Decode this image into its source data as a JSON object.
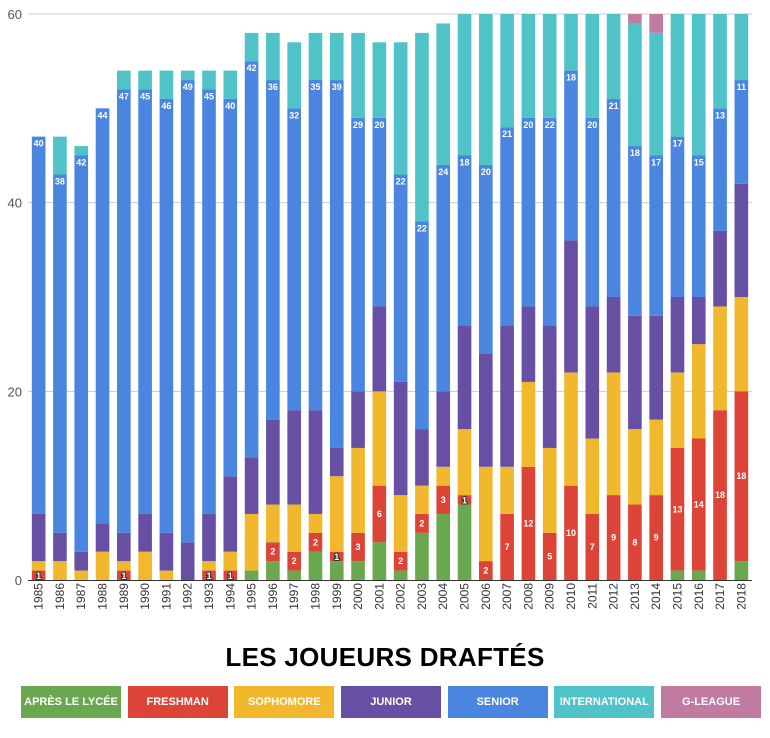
{
  "title": "LES JOUEURS DRAFTÉS",
  "colors": {
    "apres_lycee": "#6aa84f",
    "freshman": "#db4437",
    "sophomore": "#f1b82d",
    "junior": "#6750a4",
    "senior": "#4a86e0",
    "international": "#4fc3c7",
    "gleague": "#c27ba0"
  },
  "legend": [
    {
      "key": "apres_lycee",
      "label": "APRÈS LE LYCÉE"
    },
    {
      "key": "freshman",
      "label": "FRESHMAN"
    },
    {
      "key": "sophomore",
      "label": "SOPHOMORE"
    },
    {
      "key": "junior",
      "label": "JUNIOR"
    },
    {
      "key": "senior",
      "label": "SENIOR"
    },
    {
      "key": "international",
      "label": "INTERNATIONAL"
    },
    {
      "key": "gleague",
      "label": "G-LEAGUE"
    }
  ],
  "chart_data": {
    "type": "bar",
    "stacked": true,
    "title": "LES JOUEURS DRAFTÉS",
    "xlabel": "",
    "ylabel": "",
    "ylim": [
      0,
      60
    ],
    "yticks": [
      0,
      20,
      40,
      60
    ],
    "grid": true,
    "legend_position": "bottom",
    "categories": [
      "1985",
      "1986",
      "1987",
      "1988",
      "1989",
      "1990",
      "1991",
      "1992",
      "1993",
      "1994",
      "1995",
      "1996",
      "1997",
      "1998",
      "1999",
      "2000",
      "2001",
      "2002",
      "2003",
      "2004",
      "2005",
      "2006",
      "2007",
      "2008",
      "2009",
      "2010",
      "2011",
      "2012",
      "2013",
      "2014",
      "2015",
      "2016",
      "2017",
      "2018"
    ],
    "series": [
      {
        "key": "apres_lycee",
        "name": "APRÈS LE LYCÉE",
        "values": [
          0,
          0,
          0,
          0,
          0,
          0,
          0,
          0,
          0,
          0,
          1,
          2,
          1,
          3,
          2,
          2,
          4,
          1,
          5,
          7,
          8,
          0,
          0,
          0,
          0,
          0,
          0,
          0,
          0,
          0,
          1,
          1,
          0,
          2
        ]
      },
      {
        "key": "freshman",
        "name": "FRESHMAN",
        "values": [
          1,
          0,
          0,
          0,
          1,
          0,
          0,
          0,
          1,
          1,
          0,
          2,
          2,
          2,
          1,
          3,
          6,
          2,
          2,
          3,
          1,
          2,
          7,
          12,
          5,
          10,
          7,
          9,
          8,
          9,
          13,
          14,
          18,
          18
        ]
      },
      {
        "key": "sophomore",
        "name": "SOPHOMORE",
        "values": [
          1,
          2,
          1,
          3,
          1,
          3,
          1,
          0,
          1,
          2,
          6,
          4,
          5,
          2,
          8,
          9,
          10,
          6,
          3,
          2,
          7,
          10,
          5,
          9,
          9,
          12,
          8,
          13,
          8,
          8,
          8,
          10,
          11,
          10
        ]
      },
      {
        "key": "junior",
        "name": "JUNIOR",
        "values": [
          5,
          3,
          2,
          3,
          3,
          4,
          4,
          4,
          5,
          8,
          6,
          9,
          10,
          11,
          3,
          6,
          9,
          12,
          6,
          8,
          11,
          12,
          15,
          8,
          13,
          14,
          14,
          8,
          12,
          11,
          8,
          5,
          8,
          12
        ]
      },
      {
        "key": "senior",
        "name": "SENIOR",
        "values": [
          40,
          38,
          42,
          44,
          47,
          45,
          46,
          49,
          45,
          40,
          42,
          36,
          32,
          35,
          39,
          29,
          20,
          22,
          22,
          24,
          18,
          20,
          21,
          20,
          22,
          18,
          20,
          21,
          18,
          17,
          17,
          15,
          13,
          11
        ]
      },
      {
        "key": "international",
        "name": "INTERNATIONAL",
        "values": [
          0,
          4,
          1,
          0,
          2,
          2,
          3,
          1,
          2,
          3,
          3,
          5,
          7,
          5,
          5,
          9,
          8,
          14,
          20,
          15,
          15,
          16,
          12,
          11,
          11,
          6,
          11,
          9,
          13,
          13,
          13,
          15,
          10,
          7
        ]
      },
      {
        "key": "gleague",
        "name": "G-LEAGUE",
        "values": [
          0,
          0,
          0,
          0,
          0,
          0,
          0,
          0,
          0,
          0,
          0,
          0,
          0,
          0,
          0,
          0,
          0,
          0,
          0,
          0,
          0,
          0,
          0,
          0,
          0,
          0,
          0,
          0,
          1,
          2,
          0,
          0,
          0,
          0
        ]
      }
    ],
    "data_labels": {
      "freshman": [
        1,
        null,
        null,
        null,
        1,
        null,
        null,
        null,
        1,
        1,
        null,
        2,
        2,
        2,
        1,
        3,
        6,
        2,
        2,
        3,
        1,
        2,
        7,
        12,
        5,
        10,
        7,
        9,
        8,
        9,
        13,
        14,
        18,
        18
      ],
      "senior": [
        40,
        38,
        42,
        44,
        47,
        45,
        46,
        49,
        45,
        40,
        42,
        36,
        32,
        35,
        39,
        29,
        20,
        22,
        22,
        24,
        18,
        20,
        21,
        20,
        22,
        18,
        20,
        21,
        18,
        17,
        17,
        15,
        13,
        11
      ]
    }
  }
}
